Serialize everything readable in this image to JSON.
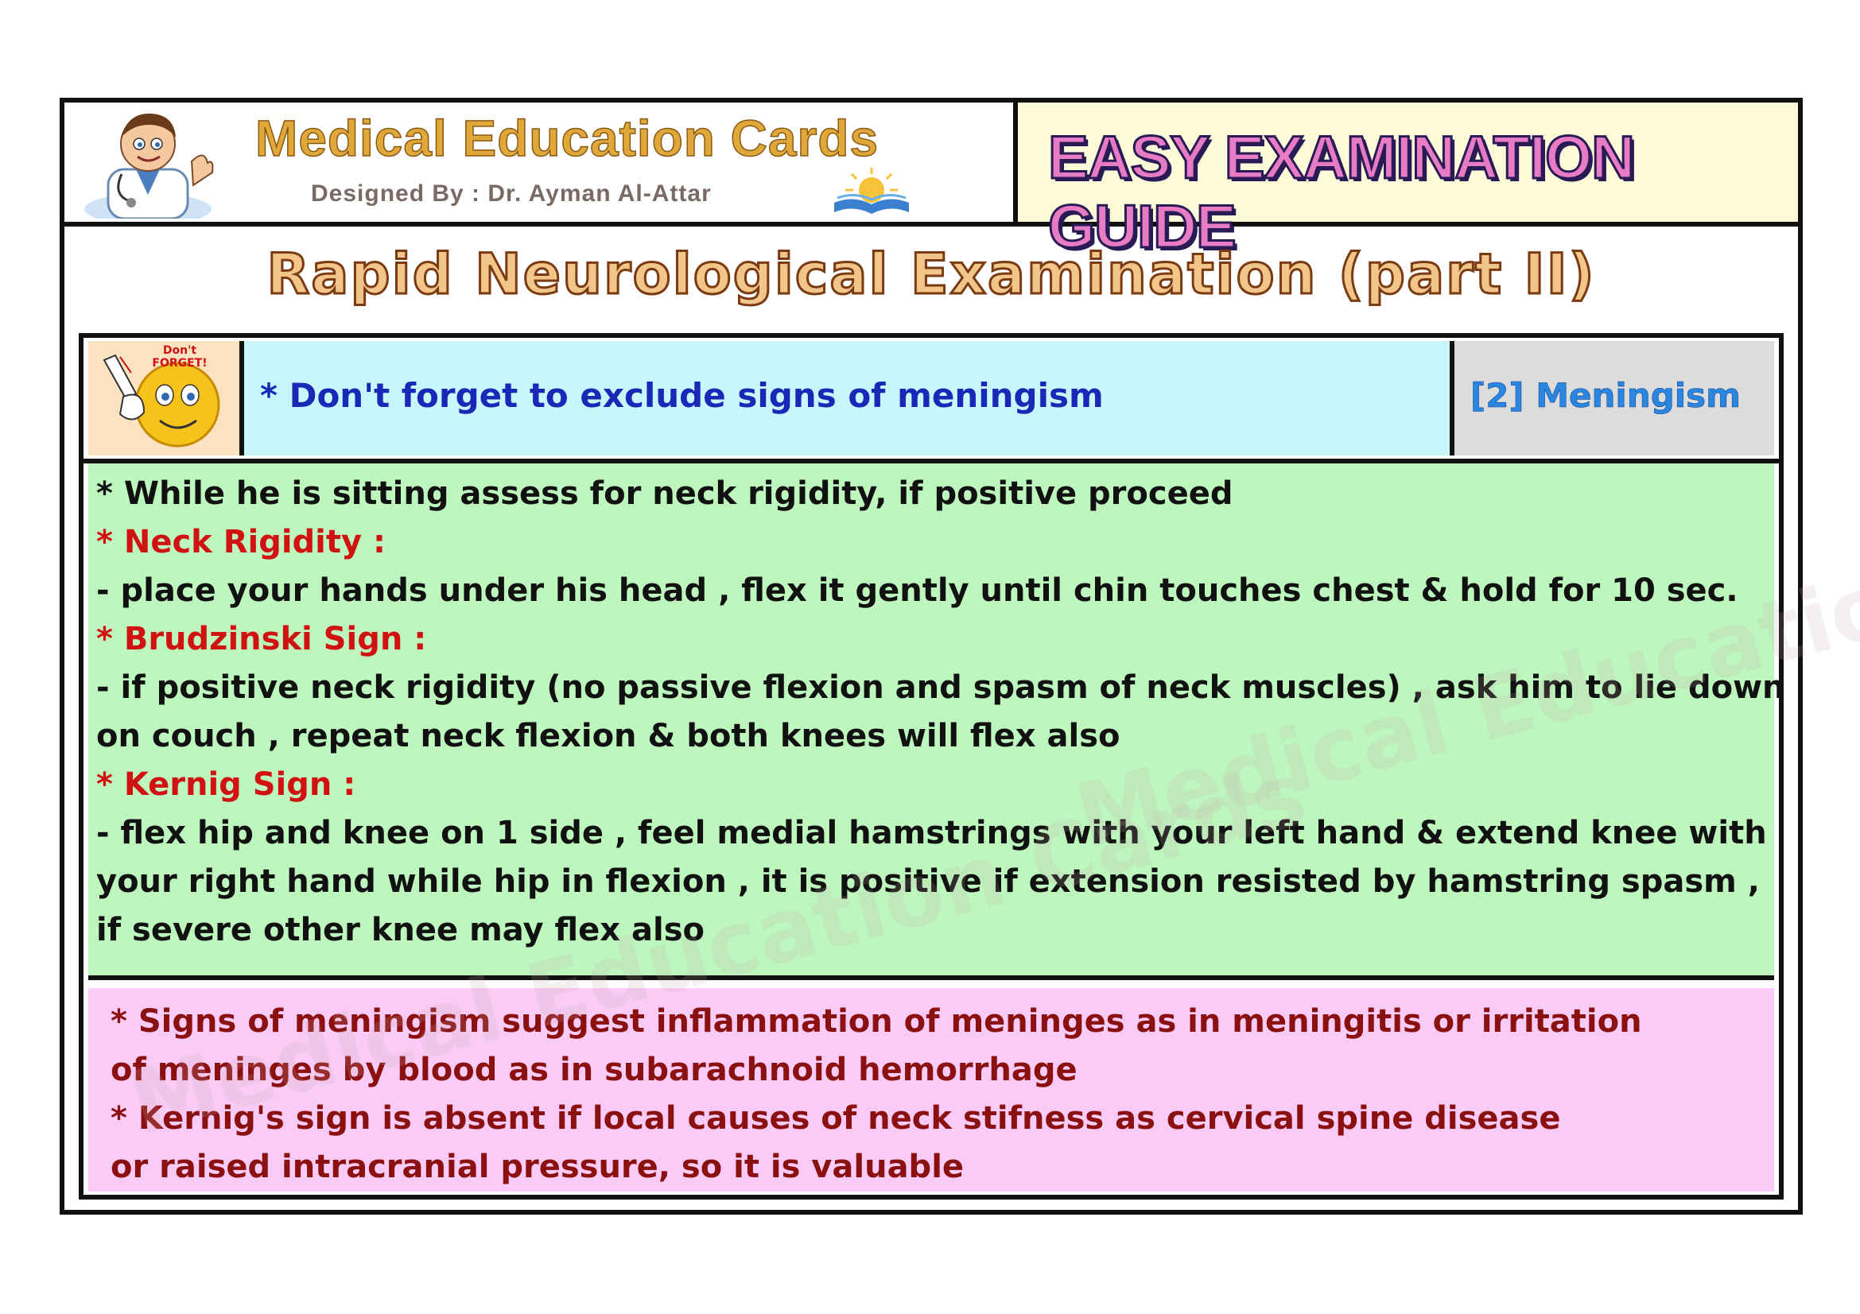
{
  "header": {
    "brand_title": "Medical Education Cards",
    "brand_subtitle": "Designed By : Dr. Ayman Al-Attar",
    "guide_title": "EASY EXAMINATION GUIDE"
  },
  "title": "Rapid Neurological Examination (part II)",
  "reminder": {
    "badge_text": "Don't FORGET!",
    "text": "* Don't forget to exclude signs of meningism",
    "section_tag": "[2] Meningism"
  },
  "content": {
    "intro": "* While he is sitting assess for neck rigidity, if positive proceed",
    "neck_heading": "* Neck Rigidity :",
    "neck_text": "- place your hands under his head , flex it gently until chin touches chest & hold for 10 sec.",
    "brudzinski_heading": "* Brudzinski Sign :",
    "brudzinski_text_1": "- if positive neck rigidity (no passive flexion and spasm of neck muscles) , ask him to lie down",
    "brudzinski_text_2": "on couch , repeat neck flexion & both knees will flex also",
    "kernig_heading": "* Kernig Sign :",
    "kernig_text_1": "- flex hip and knee on 1 side , feel medial hamstrings with your left hand & extend knee with",
    "kernig_text_2": "your right hand while hip in flexion , it is positive if extension resisted by hamstring spasm ,",
    "kernig_text_3": "if severe other knee may flex also"
  },
  "notes": {
    "line_1": "* Signs of meningism suggest inflammation of meninges as in meningitis or irritation",
    "line_2": "of meninges by blood as in subarachnoid hemorrhage",
    "line_3": "* Kernig's sign is absent if local causes of neck stifness as cervical spine disease",
    "line_4": "or raised intracranial pressure, so it is valuable"
  },
  "watermark": "Medical Education Cards",
  "colors": {
    "reminder_bg": "#c7f7fa",
    "content_bg": "#bdf7be",
    "notes_bg": "#fbcbf7",
    "heading_red": "#d11212",
    "reminder_blue": "#1a28b8"
  }
}
